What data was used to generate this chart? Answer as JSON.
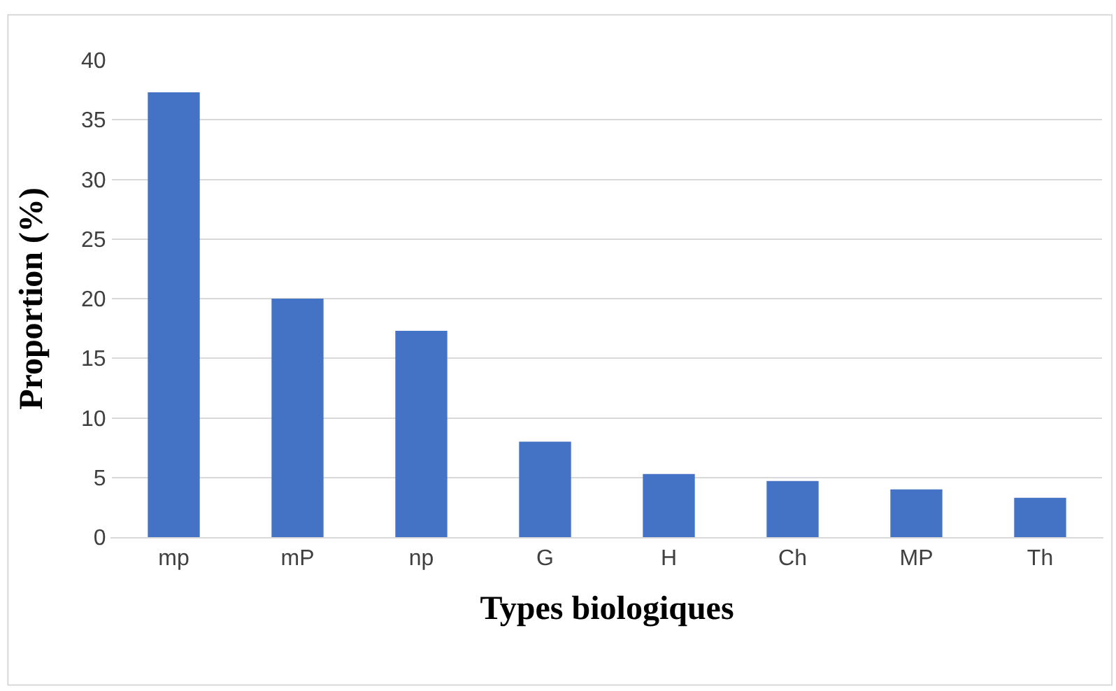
{
  "chart_data": {
    "type": "bar",
    "xlabel": "Types biologiques",
    "ylabel": "Proportion (%)",
    "categories": [
      "mp",
      "mP",
      "np",
      "G",
      "H",
      "Ch",
      "MP",
      "Th"
    ],
    "values": [
      37.3,
      20.0,
      17.3,
      8.0,
      5.3,
      4.7,
      4.0,
      3.3
    ],
    "color": "#4472c4",
    "ylim": [
      0,
      40
    ],
    "yticks": [
      0,
      5,
      10,
      15,
      20,
      25,
      30,
      35,
      40
    ],
    "grid": "y"
  }
}
